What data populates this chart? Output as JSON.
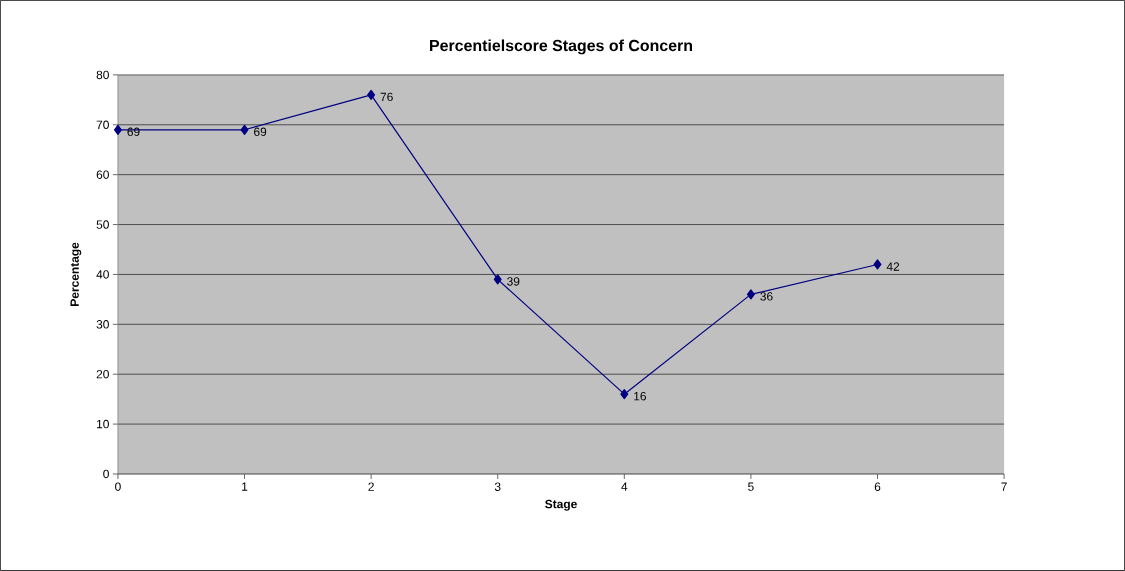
{
  "chart_data": {
    "type": "line",
    "title": "Percentielscore Stages of Concern",
    "xlabel": "Stage",
    "ylabel": "Percentage",
    "x": [
      0,
      1,
      2,
      3,
      4,
      5,
      6
    ],
    "series": [
      {
        "color": "#000080",
        "values": [
          69,
          69,
          76,
          39,
          16,
          36,
          42
        ]
      }
    ],
    "xlim": [
      0,
      7
    ],
    "xticks": [
      0,
      1,
      2,
      3,
      4,
      5,
      6,
      7
    ],
    "ylim": [
      0,
      80
    ],
    "yticks": [
      0,
      10,
      20,
      30,
      40,
      50,
      60,
      70,
      80
    ],
    "grid": "y",
    "marker": "diamond",
    "line_style": "solid",
    "data_labels": true
  }
}
